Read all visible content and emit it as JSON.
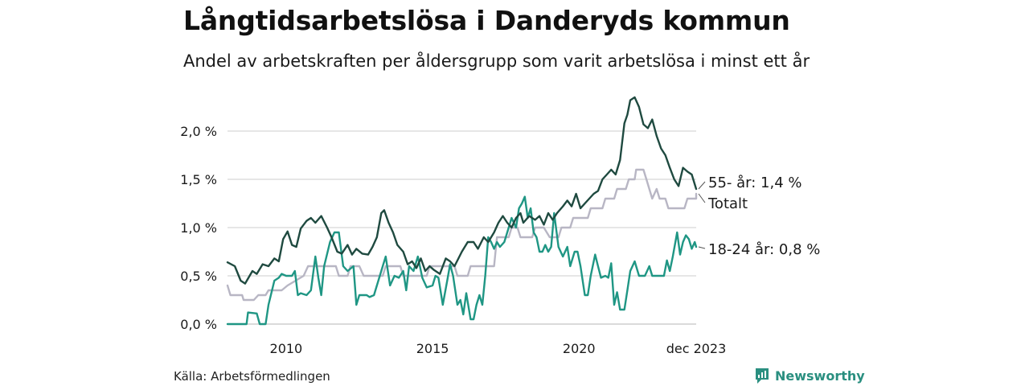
{
  "title": "Långtidsarbetslösa i Danderyds kommun",
  "subtitle": "Andel av arbetskraften per åldersgrupp som varit arbetslösa i minst ett år",
  "source": "Källa: Arbetsförmedlingen",
  "brand": "Newsworthy",
  "colors": {
    "age55": "#1f4a40",
    "total": "#b8b6c4",
    "age18_24": "#1f9684",
    "grid": "#d6d6d6",
    "brand": "#2a8f80"
  },
  "chart_data": {
    "type": "line",
    "title": "Långtidsarbetslösa i Danderyds kommun",
    "subtitle": "Andel av arbetskraften per åldersgrupp som varit arbetslösa i minst ett år",
    "xlabel": "",
    "ylabel": "",
    "xlim": [
      2008.0,
      2024.0
    ],
    "ylim": [
      0,
      2.35
    ],
    "yticks": [
      0,
      0.5,
      1.0,
      1.5,
      2.0
    ],
    "ytick_labels": [
      "0,0 %",
      "0,5 %",
      "1,0 %",
      "1,5 %",
      "2,0 %"
    ],
    "xticks": [
      2010,
      2015,
      2020,
      2024
    ],
    "xtick_labels": [
      "2010",
      "2015",
      "2020",
      "dec 2023"
    ],
    "series": [
      {
        "name": "55- år",
        "label": "55- år: 1,4 %",
        "color": "#1f4a40",
        "points": [
          [
            2008.0,
            0.64
          ],
          [
            2008.25,
            0.6
          ],
          [
            2008.45,
            0.45
          ],
          [
            2008.6,
            0.42
          ],
          [
            2008.85,
            0.55
          ],
          [
            2009.0,
            0.52
          ],
          [
            2009.2,
            0.62
          ],
          [
            2009.4,
            0.6
          ],
          [
            2009.6,
            0.68
          ],
          [
            2009.75,
            0.65
          ],
          [
            2009.9,
            0.88
          ],
          [
            2010.05,
            0.96
          ],
          [
            2010.2,
            0.82
          ],
          [
            2010.35,
            0.8
          ],
          [
            2010.5,
            0.99
          ],
          [
            2010.7,
            1.07
          ],
          [
            2010.85,
            1.1
          ],
          [
            2011.0,
            1.05
          ],
          [
            2011.2,
            1.12
          ],
          [
            2011.4,
            1.0
          ],
          [
            2011.55,
            0.9
          ],
          [
            2011.75,
            0.75
          ],
          [
            2011.9,
            0.73
          ],
          [
            2012.1,
            0.82
          ],
          [
            2012.25,
            0.72
          ],
          [
            2012.4,
            0.78
          ],
          [
            2012.6,
            0.73
          ],
          [
            2012.8,
            0.72
          ],
          [
            2012.95,
            0.8
          ],
          [
            2013.1,
            0.9
          ],
          [
            2013.25,
            1.15
          ],
          [
            2013.35,
            1.18
          ],
          [
            2013.5,
            1.05
          ],
          [
            2013.65,
            0.95
          ],
          [
            2013.8,
            0.82
          ],
          [
            2014.0,
            0.75
          ],
          [
            2014.15,
            0.62
          ],
          [
            2014.3,
            0.65
          ],
          [
            2014.45,
            0.58
          ],
          [
            2014.6,
            0.68
          ],
          [
            2014.75,
            0.55
          ],
          [
            2014.9,
            0.6
          ],
          [
            2015.05,
            0.56
          ],
          [
            2015.25,
            0.52
          ],
          [
            2015.45,
            0.68
          ],
          [
            2015.6,
            0.65
          ],
          [
            2015.75,
            0.6
          ],
          [
            2016.0,
            0.75
          ],
          [
            2016.2,
            0.85
          ],
          [
            2016.4,
            0.85
          ],
          [
            2016.55,
            0.78
          ],
          [
            2016.75,
            0.9
          ],
          [
            2016.9,
            0.85
          ],
          [
            2017.1,
            0.95
          ],
          [
            2017.25,
            1.05
          ],
          [
            2017.4,
            1.12
          ],
          [
            2017.55,
            1.05
          ],
          [
            2017.7,
            1.0
          ],
          [
            2017.85,
            1.1
          ],
          [
            2018.0,
            1.15
          ],
          [
            2018.1,
            1.05
          ],
          [
            2018.3,
            1.12
          ],
          [
            2018.5,
            1.08
          ],
          [
            2018.65,
            1.12
          ],
          [
            2018.8,
            1.03
          ],
          [
            2018.95,
            1.15
          ],
          [
            2019.1,
            1.08
          ],
          [
            2019.25,
            1.15
          ],
          [
            2019.45,
            1.22
          ],
          [
            2019.6,
            1.28
          ],
          [
            2019.75,
            1.22
          ],
          [
            2019.9,
            1.35
          ],
          [
            2020.05,
            1.2
          ],
          [
            2020.2,
            1.25
          ],
          [
            2020.35,
            1.3
          ],
          [
            2020.5,
            1.35
          ],
          [
            2020.65,
            1.38
          ],
          [
            2020.8,
            1.5
          ],
          [
            2020.95,
            1.55
          ],
          [
            2021.1,
            1.6
          ],
          [
            2021.25,
            1.55
          ],
          [
            2021.4,
            1.7
          ],
          [
            2021.55,
            2.08
          ],
          [
            2021.65,
            2.17
          ],
          [
            2021.75,
            2.32
          ],
          [
            2021.9,
            2.35
          ],
          [
            2022.05,
            2.25
          ],
          [
            2022.2,
            2.07
          ],
          [
            2022.35,
            2.03
          ],
          [
            2022.5,
            2.12
          ],
          [
            2022.65,
            1.95
          ],
          [
            2022.8,
            1.82
          ],
          [
            2022.95,
            1.75
          ],
          [
            2023.1,
            1.62
          ],
          [
            2023.25,
            1.5
          ],
          [
            2023.4,
            1.43
          ],
          [
            2023.55,
            1.62
          ],
          [
            2023.7,
            1.58
          ],
          [
            2023.85,
            1.55
          ],
          [
            2024.0,
            1.4
          ]
        ]
      },
      {
        "name": "Totalt",
        "label": "Totalt",
        "color": "#b8b6c4",
        "points": [
          [
            2008.0,
            0.4
          ],
          [
            2008.1,
            0.3
          ],
          [
            2008.5,
            0.3
          ],
          [
            2008.55,
            0.25
          ],
          [
            2008.9,
            0.25
          ],
          [
            2009.05,
            0.3
          ],
          [
            2009.3,
            0.3
          ],
          [
            2009.4,
            0.35
          ],
          [
            2009.85,
            0.35
          ],
          [
            2010.05,
            0.4
          ],
          [
            2010.6,
            0.5
          ],
          [
            2010.75,
            0.6
          ],
          [
            2011.7,
            0.6
          ],
          [
            2011.8,
            0.5
          ],
          [
            2012.1,
            0.5
          ],
          [
            2012.2,
            0.6
          ],
          [
            2012.5,
            0.6
          ],
          [
            2012.65,
            0.5
          ],
          [
            2013.3,
            0.5
          ],
          [
            2013.4,
            0.6
          ],
          [
            2013.9,
            0.6
          ],
          [
            2014.0,
            0.5
          ],
          [
            2014.8,
            0.5
          ],
          [
            2014.9,
            0.6
          ],
          [
            2015.75,
            0.6
          ],
          [
            2015.85,
            0.5
          ],
          [
            2016.2,
            0.5
          ],
          [
            2016.3,
            0.6
          ],
          [
            2017.1,
            0.6
          ],
          [
            2017.2,
            0.9
          ],
          [
            2017.6,
            0.9
          ],
          [
            2017.7,
            1.0
          ],
          [
            2017.9,
            1.0
          ],
          [
            2018.0,
            0.9
          ],
          [
            2018.4,
            0.9
          ],
          [
            2018.5,
            1.0
          ],
          [
            2018.8,
            1.0
          ],
          [
            2019.0,
            0.9
          ],
          [
            2019.3,
            0.9
          ],
          [
            2019.4,
            1.0
          ],
          [
            2019.7,
            1.0
          ],
          [
            2019.8,
            1.1
          ],
          [
            2020.3,
            1.1
          ],
          [
            2020.4,
            1.2
          ],
          [
            2020.8,
            1.2
          ],
          [
            2020.9,
            1.3
          ],
          [
            2021.2,
            1.3
          ],
          [
            2021.3,
            1.4
          ],
          [
            2021.6,
            1.4
          ],
          [
            2021.7,
            1.5
          ],
          [
            2021.9,
            1.5
          ],
          [
            2021.95,
            1.6
          ],
          [
            2022.2,
            1.6
          ],
          [
            2022.3,
            1.5
          ],
          [
            2022.4,
            1.4
          ],
          [
            2022.5,
            1.3
          ],
          [
            2022.65,
            1.4
          ],
          [
            2022.75,
            1.3
          ],
          [
            2022.95,
            1.3
          ],
          [
            2023.05,
            1.2
          ],
          [
            2023.6,
            1.2
          ],
          [
            2023.7,
            1.3
          ],
          [
            2024.0,
            1.3
          ],
          [
            2024.0,
            1.35
          ]
        ]
      },
      {
        "name": "18-24 år",
        "label": "18-24 år: 0,8 %",
        "color": "#1f9684",
        "points": [
          [
            2008.0,
            0.0
          ],
          [
            2008.3,
            0.0
          ],
          [
            2008.65,
            0.0
          ],
          [
            2008.7,
            0.12
          ],
          [
            2009.0,
            0.11
          ],
          [
            2009.1,
            0.0
          ],
          [
            2009.3,
            0.0
          ],
          [
            2009.4,
            0.2
          ],
          [
            2009.6,
            0.45
          ],
          [
            2009.75,
            0.48
          ],
          [
            2009.85,
            0.52
          ],
          [
            2010.0,
            0.5
          ],
          [
            2010.2,
            0.5
          ],
          [
            2010.3,
            0.55
          ],
          [
            2010.4,
            0.3
          ],
          [
            2010.5,
            0.32
          ],
          [
            2010.7,
            0.3
          ],
          [
            2010.85,
            0.35
          ],
          [
            2011.0,
            0.7
          ],
          [
            2011.1,
            0.48
          ],
          [
            2011.2,
            0.3
          ],
          [
            2011.3,
            0.6
          ],
          [
            2011.5,
            0.85
          ],
          [
            2011.65,
            0.95
          ],
          [
            2011.8,
            0.95
          ],
          [
            2011.95,
            0.6
          ],
          [
            2012.1,
            0.55
          ],
          [
            2012.3,
            0.6
          ],
          [
            2012.4,
            0.2
          ],
          [
            2012.5,
            0.3
          ],
          [
            2012.75,
            0.3
          ],
          [
            2012.85,
            0.28
          ],
          [
            2013.0,
            0.3
          ],
          [
            2013.3,
            0.6
          ],
          [
            2013.4,
            0.7
          ],
          [
            2013.55,
            0.4
          ],
          [
            2013.7,
            0.5
          ],
          [
            2013.85,
            0.48
          ],
          [
            2014.0,
            0.55
          ],
          [
            2014.1,
            0.35
          ],
          [
            2014.2,
            0.6
          ],
          [
            2014.35,
            0.55
          ],
          [
            2014.5,
            0.7
          ],
          [
            2014.65,
            0.48
          ],
          [
            2014.8,
            0.38
          ],
          [
            2015.0,
            0.4
          ],
          [
            2015.1,
            0.5
          ],
          [
            2015.2,
            0.48
          ],
          [
            2015.35,
            0.2
          ],
          [
            2015.5,
            0.45
          ],
          [
            2015.6,
            0.62
          ],
          [
            2015.7,
            0.5
          ],
          [
            2015.85,
            0.2
          ],
          [
            2015.95,
            0.25
          ],
          [
            2016.05,
            0.1
          ],
          [
            2016.15,
            0.32
          ],
          [
            2016.3,
            0.05
          ],
          [
            2016.4,
            0.05
          ],
          [
            2016.5,
            0.2
          ],
          [
            2016.6,
            0.3
          ],
          [
            2016.7,
            0.2
          ],
          [
            2016.8,
            0.5
          ],
          [
            2016.9,
            0.9
          ],
          [
            2017.0,
            0.85
          ],
          [
            2017.1,
            0.78
          ],
          [
            2017.2,
            0.85
          ],
          [
            2017.3,
            0.8
          ],
          [
            2017.45,
            0.85
          ],
          [
            2017.6,
            1.0
          ],
          [
            2017.7,
            1.1
          ],
          [
            2017.85,
            1.0
          ],
          [
            2017.95,
            1.2
          ],
          [
            2018.05,
            1.25
          ],
          [
            2018.15,
            1.32
          ],
          [
            2018.25,
            1.1
          ],
          [
            2018.35,
            1.2
          ],
          [
            2018.45,
            0.95
          ],
          [
            2018.55,
            0.9
          ],
          [
            2018.65,
            0.75
          ],
          [
            2018.75,
            0.75
          ],
          [
            2018.85,
            0.82
          ],
          [
            2018.95,
            0.75
          ],
          [
            2019.05,
            0.8
          ],
          [
            2019.15,
            1.15
          ],
          [
            2019.3,
            0.8
          ],
          [
            2019.45,
            0.7
          ],
          [
            2019.6,
            0.8
          ],
          [
            2019.7,
            0.6
          ],
          [
            2019.85,
            0.75
          ],
          [
            2019.95,
            0.75
          ],
          [
            2020.05,
            0.6
          ],
          [
            2020.2,
            0.3
          ],
          [
            2020.3,
            0.3
          ],
          [
            2020.4,
            0.5
          ],
          [
            2020.55,
            0.72
          ],
          [
            2020.65,
            0.6
          ],
          [
            2020.75,
            0.48
          ],
          [
            2020.9,
            0.5
          ],
          [
            2021.0,
            0.48
          ],
          [
            2021.1,
            0.63
          ],
          [
            2021.2,
            0.2
          ],
          [
            2021.3,
            0.33
          ],
          [
            2021.4,
            0.15
          ],
          [
            2021.55,
            0.15
          ],
          [
            2021.65,
            0.35
          ],
          [
            2021.75,
            0.55
          ],
          [
            2021.9,
            0.65
          ],
          [
            2022.05,
            0.5
          ],
          [
            2022.25,
            0.5
          ],
          [
            2022.4,
            0.6
          ],
          [
            2022.5,
            0.5
          ],
          [
            2022.7,
            0.5
          ],
          [
            2022.9,
            0.5
          ],
          [
            2023.0,
            0.66
          ],
          [
            2023.1,
            0.55
          ],
          [
            2023.2,
            0.7
          ],
          [
            2023.35,
            0.95
          ],
          [
            2023.45,
            0.72
          ],
          [
            2023.55,
            0.85
          ],
          [
            2023.65,
            0.92
          ],
          [
            2023.75,
            0.88
          ],
          [
            2023.85,
            0.78
          ],
          [
            2023.95,
            0.85
          ],
          [
            2024.0,
            0.8
          ]
        ]
      }
    ]
  }
}
